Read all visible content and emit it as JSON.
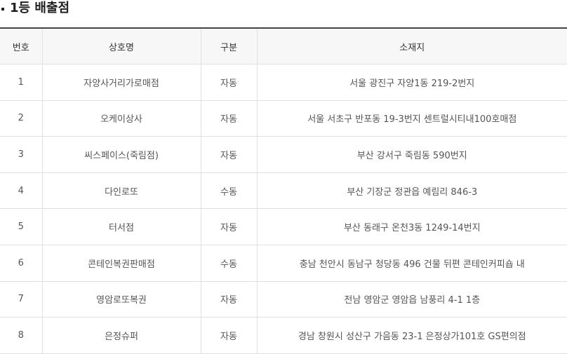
{
  "header": {
    "title": "1등 배출점"
  },
  "table": {
    "columns": [
      "번호",
      "상호명",
      "구분",
      "소재지"
    ],
    "rows": [
      [
        "1",
        "자양사거리가로매점",
        "자동",
        "서울 광진구 자양1동 219-2번지"
      ],
      [
        "2",
        "오케이상사",
        "자동",
        "서울 서초구 반포동 19-3번지 센트럴시티내100호매점"
      ],
      [
        "3",
        "씨스페이스(죽림점)",
        "자동",
        "부산 강서구 죽림동 590번지"
      ],
      [
        "4",
        "다인로또",
        "수동",
        "부산 기장군 정관읍 예림리 846-3"
      ],
      [
        "5",
        "터서점",
        "자동",
        "부산 동래구 온천3동 1249-14번지"
      ],
      [
        "6",
        "콘테인복권판매점",
        "수동",
        "충남 천안시 동남구 청당동 496 건물 뒤편 콘테인커피숍 내"
      ],
      [
        "7",
        "영암로또복권",
        "자동",
        "전남 영암군 영암읍 남풍리 4-1 1층"
      ],
      [
        "8",
        "은정슈퍼",
        "자동",
        "경남 창원시 성산구 가음동 23-1 은정상가101호 GS편의점"
      ]
    ]
  }
}
